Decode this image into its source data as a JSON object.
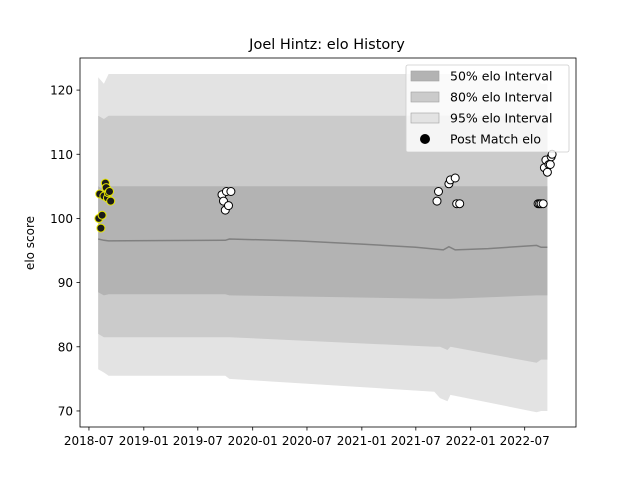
{
  "chart_data": {
    "type": "scatter",
    "title": "Joel Hintz: elo History",
    "xlabel": "",
    "ylabel": "elo score",
    "x_ticks": [
      "2018-07",
      "2019-01",
      "2019-07",
      "2020-01",
      "2020-07",
      "2021-01",
      "2021-07",
      "2022-01",
      "2022-07"
    ],
    "xlim": [
      "2018-06-01",
      "2022-12-20"
    ],
    "ylim": [
      67.5,
      125
    ],
    "y_ticks": [
      70,
      80,
      90,
      100,
      110,
      120
    ],
    "grid": false,
    "legend_position": "top-right",
    "legend": [
      {
        "label": "50% elo Interval",
        "color": "#b3b3b3",
        "kind": "band"
      },
      {
        "label": "80% elo Interval",
        "color": "#cbcbcb",
        "kind": "band"
      },
      {
        "label": "95% elo Interval",
        "color": "#e3e3e3",
        "kind": "band"
      },
      {
        "label": "Post Match elo",
        "color": "#000000",
        "kind": "marker"
      }
    ],
    "colors": {
      "band50": "#b3b3b3",
      "band80": "#cbcbcb",
      "band95": "#e3e3e3",
      "mean_line": "#808080",
      "highlight_fill": "#1a1a1a",
      "highlight_edge": "#e6e600",
      "point_fill": "#ffffff",
      "point_edge": "#000000"
    },
    "bands": {
      "x": [
        "2018-08-01",
        "2018-08-20",
        "2018-09-05",
        "2018-09-20",
        "2019-10-01",
        "2019-10-15",
        "2021-09-01",
        "2021-09-20",
        "2021-10-15",
        "2021-10-25",
        "2022-08-10",
        "2022-08-25",
        "2022-09-15"
      ],
      "upper95": [
        122,
        121,
        122.5,
        122.5,
        122.5,
        122.5,
        122.5,
        122.5,
        122.5,
        122.5,
        122,
        121,
        121
      ],
      "lower95": [
        76.5,
        76,
        75.5,
        75.5,
        75.5,
        75,
        73,
        72,
        71.5,
        72.5,
        69.8,
        70,
        70
      ],
      "upper80": [
        116,
        115.5,
        116,
        116,
        116,
        116,
        116,
        116,
        116,
        116,
        116,
        115.5,
        115.5
      ],
      "lower80": [
        82,
        81.5,
        81.5,
        81.5,
        81.5,
        81.5,
        80,
        80,
        79.5,
        80,
        77.5,
        78,
        78
      ],
      "upper50": [
        105,
        104.5,
        105,
        105,
        105,
        105,
        105,
        105,
        105,
        105,
        105,
        105,
        105
      ],
      "lower50": [
        88.5,
        88,
        88.2,
        88.2,
        88.2,
        88,
        87.5,
        87.5,
        87.5,
        87.5,
        88,
        88,
        88
      ]
    },
    "mean_line": {
      "x": [
        "2018-08-01",
        "2018-08-20",
        "2018-09-05",
        "2019-10-01",
        "2019-10-15",
        "2020-06-01",
        "2021-01-01",
        "2021-07-01",
        "2021-10-01",
        "2021-10-20",
        "2021-11-10",
        "2022-03-01",
        "2022-08-10",
        "2022-08-25",
        "2022-09-15"
      ],
      "y": [
        96.8,
        96.6,
        96.5,
        96.6,
        96.8,
        96.5,
        96,
        95.5,
        95.1,
        95.6,
        95.1,
        95.3,
        95.8,
        95.5,
        95.5
      ]
    },
    "series": [
      {
        "name": "Post Match elo (highlighted)",
        "style": "highlight",
        "x": [
          "2018-08-03",
          "2018-08-06",
          "2018-08-10",
          "2018-08-14",
          "2018-08-20",
          "2018-08-25",
          "2018-08-28",
          "2018-09-01",
          "2018-09-04",
          "2018-09-08",
          "2018-09-12"
        ],
        "y": [
          100,
          103.8,
          98.5,
          100.5,
          103.5,
          105.5,
          104.8,
          103.2,
          104,
          104.2,
          102.7
        ]
      },
      {
        "name": "Post Match elo",
        "style": "normal",
        "x": [
          "2019-09-20",
          "2019-09-25",
          "2019-10-01",
          "2019-10-05",
          "2019-10-12",
          "2019-10-20",
          "2021-09-10",
          "2021-09-15",
          "2021-10-20",
          "2021-10-25",
          "2021-11-10",
          "2021-11-15",
          "2021-11-25",
          "2022-08-15",
          "2022-08-20",
          "2022-08-25",
          "2022-09-01",
          "2022-09-05",
          "2022-09-10",
          "2022-09-15",
          "2022-09-20",
          "2022-09-25",
          "2022-09-28",
          "2022-10-01"
        ],
        "y": [
          103.7,
          102.7,
          101.3,
          104.2,
          102,
          104.2,
          102.7,
          104.2,
          105.4,
          106,
          106.3,
          102.3,
          102.3,
          102.3,
          102.3,
          102.3,
          102.3,
          107.9,
          109.1,
          107.2,
          108.4,
          108.4,
          109.6,
          110
        ]
      }
    ]
  }
}
